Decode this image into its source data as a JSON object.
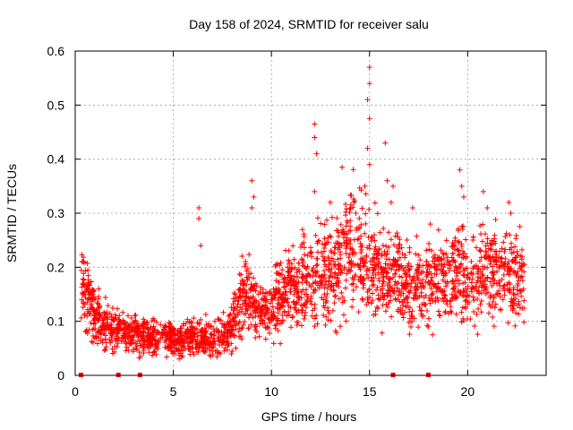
{
  "chart_data": {
    "type": "scatter",
    "title": "Day 158 of 2024, SRMTID for receiver salu",
    "xlabel": "GPS time / hours",
    "ylabel": "SRMTID / TECUs",
    "xlim": [
      0,
      24
    ],
    "ylim": [
      0,
      0.6
    ],
    "xticks": [
      0,
      5,
      10,
      15,
      20
    ],
    "xtick_labels": [
      "0",
      "5",
      "10",
      "15",
      "20"
    ],
    "yticks": [
      0,
      0.1,
      0.2,
      0.3,
      0.4,
      0.5,
      0.6
    ],
    "ytick_labels": [
      "0",
      "0.1",
      "0.2",
      "0.3",
      "0.4",
      "0.5",
      "0.6"
    ],
    "grid": true,
    "marker": "+",
    "color": "#ff0000",
    "axis_markers_x": [
      0.3,
      2.2,
      3.3,
      16.2,
      18.0
    ],
    "trend": [
      [
        0.3,
        0.17
      ],
      [
        0.5,
        0.15
      ],
      [
        0.8,
        0.12
      ],
      [
        1.2,
        0.1
      ],
      [
        2.0,
        0.085
      ],
      [
        3.0,
        0.075
      ],
      [
        4.0,
        0.07
      ],
      [
        5.0,
        0.065
      ],
      [
        6.0,
        0.07
      ],
      [
        7.0,
        0.07
      ],
      [
        7.8,
        0.075
      ],
      [
        8.2,
        0.11
      ],
      [
        8.6,
        0.16
      ],
      [
        9.0,
        0.14
      ],
      [
        9.5,
        0.11
      ],
      [
        10.0,
        0.13
      ],
      [
        10.5,
        0.15
      ],
      [
        11.0,
        0.16
      ],
      [
        11.5,
        0.17
      ],
      [
        12.0,
        0.18
      ],
      [
        12.5,
        0.19
      ],
      [
        13.0,
        0.19
      ],
      [
        13.5,
        0.21
      ],
      [
        14.0,
        0.25
      ],
      [
        14.5,
        0.24
      ],
      [
        15.0,
        0.21
      ],
      [
        15.5,
        0.19
      ],
      [
        16.0,
        0.17
      ],
      [
        16.5,
        0.18
      ],
      [
        17.0,
        0.17
      ],
      [
        17.5,
        0.16
      ],
      [
        18.0,
        0.16
      ],
      [
        18.5,
        0.17
      ],
      [
        19.0,
        0.18
      ],
      [
        19.5,
        0.19
      ],
      [
        20.0,
        0.19
      ],
      [
        20.5,
        0.18
      ],
      [
        21.0,
        0.19
      ],
      [
        21.5,
        0.19
      ],
      [
        22.0,
        0.18
      ],
      [
        22.5,
        0.18
      ],
      [
        22.9,
        0.18
      ]
    ],
    "outliers": [
      [
        0.35,
        0.21
      ],
      [
        6.3,
        0.31
      ],
      [
        6.3,
        0.29
      ],
      [
        6.4,
        0.24
      ],
      [
        9.0,
        0.36
      ],
      [
        9.1,
        0.33
      ],
      [
        9.0,
        0.31
      ],
      [
        12.2,
        0.465
      ],
      [
        12.2,
        0.44
      ],
      [
        12.3,
        0.41
      ],
      [
        12.2,
        0.34
      ],
      [
        13.0,
        0.32
      ],
      [
        13.6,
        0.385
      ],
      [
        14.2,
        0.32
      ],
      [
        14.3,
        0.3
      ],
      [
        15.0,
        0.57
      ],
      [
        15.0,
        0.54
      ],
      [
        14.9,
        0.51
      ],
      [
        15.0,
        0.475
      ],
      [
        14.9,
        0.42
      ],
      [
        15.0,
        0.39
      ],
      [
        15.8,
        0.43
      ],
      [
        15.9,
        0.36
      ],
      [
        16.2,
        0.35
      ],
      [
        16.1,
        0.32
      ],
      [
        17.2,
        0.31
      ],
      [
        18.1,
        0.28
      ],
      [
        19.6,
        0.38
      ],
      [
        19.7,
        0.35
      ],
      [
        19.8,
        0.33
      ],
      [
        20.8,
        0.34
      ],
      [
        21.0,
        0.31
      ],
      [
        22.1,
        0.32
      ],
      [
        22.2,
        0.3
      ]
    ],
    "n_points": 2600
  }
}
